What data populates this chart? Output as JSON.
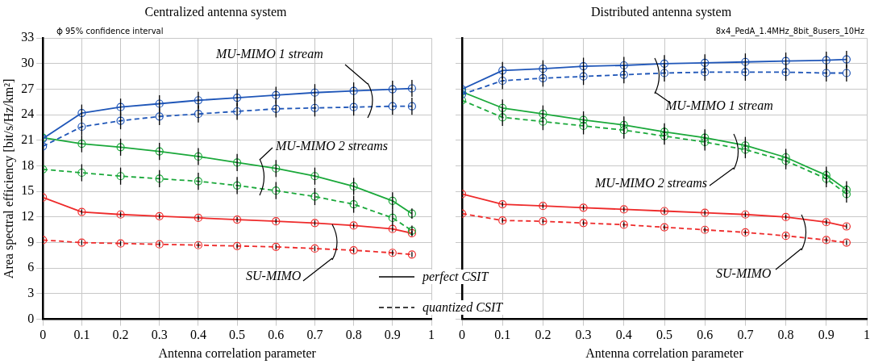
{
  "chart_data": [
    {
      "type": "line",
      "title": "Centralized antenna system",
      "xlabel": "Antenna correlation parameter",
      "ylabel": "Area spectral efficiency [bit/s/Hz/km²]",
      "x": [
        0,
        0.1,
        0.2,
        0.3,
        0.4,
        0.5,
        0.6,
        0.7,
        0.8,
        0.9,
        0.95
      ],
      "xlim": [
        0,
        1
      ],
      "xticks": [
        0,
        0.1,
        0.2,
        0.3,
        0.4,
        0.5,
        0.6,
        0.7,
        0.8,
        0.9,
        1
      ],
      "ylim": [
        0,
        33
      ],
      "yticks": [
        0,
        3,
        6,
        9,
        12,
        15,
        18,
        21,
        24,
        27,
        30,
        33
      ],
      "grid": true,
      "marker": "circle",
      "series": [
        {
          "color": "#1f56b8",
          "line_style": "solid",
          "values": [
            21.2,
            24.2,
            24.9,
            25.3,
            25.7,
            26.0,
            26.3,
            26.6,
            26.8,
            27.0,
            27.1
          ],
          "errors": [
            1,
            1,
            1,
            1,
            1,
            1,
            1,
            1,
            1,
            1,
            1
          ]
        },
        {
          "color": "#1f56b8",
          "line_style": "dashed",
          "values": [
            20.3,
            22.6,
            23.3,
            23.8,
            24.1,
            24.4,
            24.7,
            24.8,
            24.9,
            25.0,
            25.0
          ],
          "errors": [
            1,
            1,
            1,
            1,
            1,
            1,
            1,
            1,
            1,
            1,
            1
          ]
        },
        {
          "color": "#1aa83a",
          "line_style": "solid",
          "values": [
            21.3,
            20.6,
            20.2,
            19.7,
            19.1,
            18.4,
            17.7,
            16.8,
            15.6,
            13.9,
            12.4
          ],
          "errors": [
            1,
            1,
            1,
            1,
            1,
            1,
            1,
            1,
            1,
            1,
            0.6
          ]
        },
        {
          "color": "#1aa83a",
          "line_style": "dashed",
          "values": [
            17.6,
            17.2,
            16.8,
            16.5,
            16.2,
            15.7,
            15.1,
            14.4,
            13.5,
            11.9,
            10.4
          ],
          "errors": [
            1,
            1,
            1,
            1,
            1,
            1,
            1,
            1,
            1,
            1,
            0.6
          ]
        },
        {
          "color": "#ee2a2a",
          "line_style": "solid",
          "values": [
            14.3,
            12.6,
            12.3,
            12.1,
            11.9,
            11.7,
            11.5,
            11.3,
            11.0,
            10.6,
            10.1
          ],
          "errors": [
            0.3,
            0.3,
            0.3,
            0.3,
            0.3,
            0.3,
            0.3,
            0.3,
            0.3,
            0.3,
            0.3
          ]
        },
        {
          "color": "#ee2a2a",
          "line_style": "dashed",
          "values": [
            9.3,
            9.0,
            8.9,
            8.8,
            8.7,
            8.6,
            8.5,
            8.3,
            8.1,
            7.8,
            7.6
          ],
          "errors": [
            0.3,
            0.3,
            0.3,
            0.3,
            0.3,
            0.3,
            0.3,
            0.3,
            0.3,
            0.3,
            0.3
          ]
        }
      ],
      "annotations": [
        "95% confidence interval",
        "perfect CSIT",
        "quantized CSIT",
        "MU-MIMO 1 stream",
        "MU-MIMO 2 streams",
        "SU-MIMO"
      ]
    },
    {
      "type": "line",
      "title": "Distributed antenna system",
      "xlabel": "Antenna correlation parameter",
      "x": [
        0,
        0.1,
        0.2,
        0.3,
        0.4,
        0.5,
        0.6,
        0.7,
        0.8,
        0.9,
        0.95
      ],
      "xlim": [
        0,
        1
      ],
      "xticks": [
        0,
        0.1,
        0.2,
        0.3,
        0.4,
        0.5,
        0.6,
        0.7,
        0.8,
        0.9,
        1
      ],
      "ylim": [
        0,
        33
      ],
      "yticks": [
        0,
        3,
        6,
        9,
        12,
        15,
        18,
        21,
        24,
        27,
        30,
        33
      ],
      "grid": true,
      "marker": "circle",
      "tick_labels": "x",
      "series": [
        {
          "color": "#1f56b8",
          "line_style": "solid",
          "values": [
            27.0,
            29.2,
            29.4,
            29.7,
            29.8,
            30.0,
            30.1,
            30.2,
            30.3,
            30.4,
            30.5
          ],
          "errors": [
            1,
            1,
            1,
            1,
            1,
            1,
            1,
            1,
            1,
            1,
            1
          ]
        },
        {
          "color": "#1f56b8",
          "line_style": "dashed",
          "values": [
            26.4,
            28.0,
            28.3,
            28.5,
            28.7,
            28.9,
            29.0,
            29.0,
            29.0,
            28.9,
            28.9
          ],
          "errors": [
            1,
            1,
            1,
            1,
            1,
            1,
            1,
            1,
            1,
            1,
            1
          ]
        },
        {
          "color": "#1aa83a",
          "line_style": "solid",
          "values": [
            26.7,
            24.8,
            24.1,
            23.4,
            22.8,
            22.0,
            21.3,
            20.4,
            19.0,
            16.9,
            15.2
          ],
          "errors": [
            1,
            1,
            1,
            1,
            1,
            1,
            1,
            1,
            1,
            1,
            1
          ]
        },
        {
          "color": "#1aa83a",
          "line_style": "dashed",
          "values": [
            25.7,
            23.7,
            23.2,
            22.7,
            22.2,
            21.5,
            20.8,
            19.9,
            18.6,
            16.5,
            14.7
          ],
          "errors": [
            1,
            1,
            1,
            1,
            1,
            1,
            1,
            1,
            1,
            1,
            1
          ]
        },
        {
          "color": "#ee2a2a",
          "line_style": "solid",
          "values": [
            14.7,
            13.5,
            13.3,
            13.1,
            12.9,
            12.7,
            12.5,
            12.3,
            12.0,
            11.4,
            10.9
          ],
          "errors": [
            0.3,
            0.3,
            0.3,
            0.3,
            0.3,
            0.3,
            0.3,
            0.3,
            0.3,
            0.3,
            0.3
          ]
        },
        {
          "color": "#ee2a2a",
          "line_style": "dashed",
          "values": [
            12.4,
            11.6,
            11.5,
            11.3,
            11.1,
            10.8,
            10.5,
            10.2,
            9.8,
            9.3,
            9.0
          ],
          "errors": [
            0.3,
            0.3,
            0.3,
            0.3,
            0.3,
            0.3,
            0.3,
            0.3,
            0.3,
            0.3,
            0.3
          ]
        }
      ],
      "annotations": [
        "8x4_PedA_1.4MHz_8bit_8users_10Hz",
        "MU-MIMO 1 stream",
        "MU-MIMO 2 streams",
        "SU-MIMO"
      ]
    }
  ]
}
